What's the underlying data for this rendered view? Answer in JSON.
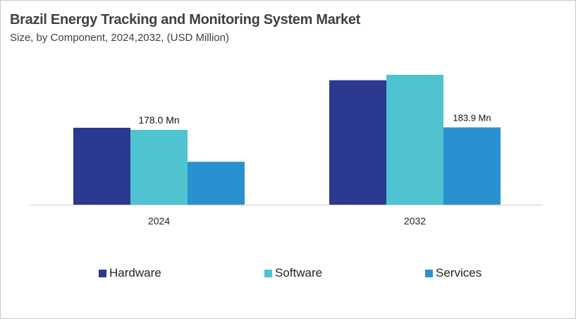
{
  "chart_data": {
    "type": "bar",
    "title": "Brazil Energy Tracking and Monitoring System Market",
    "subtitle": "Size, by Component, 2024,2032, (USD Million)",
    "categories": [
      "2024",
      "2032"
    ],
    "series": [
      {
        "name": "Hardware",
        "color": "#2b3990",
        "values": [
          183,
          296
        ]
      },
      {
        "name": "Software",
        "color": "#4fc3cf",
        "values": [
          178.0,
          309
        ]
      },
      {
        "name": "Services",
        "color": "#2a91d0",
        "values": [
          102,
          183.9
        ]
      }
    ],
    "data_labels": [
      {
        "category": "2024",
        "series": "Software",
        "text": "178.0 Mn"
      },
      {
        "category": "2032",
        "series": "Services",
        "text": "183.9  Mn"
      }
    ],
    "ylim": [
      0,
      330
    ],
    "grid": false,
    "y_axis_visible": false,
    "legend_position": "bottom"
  }
}
